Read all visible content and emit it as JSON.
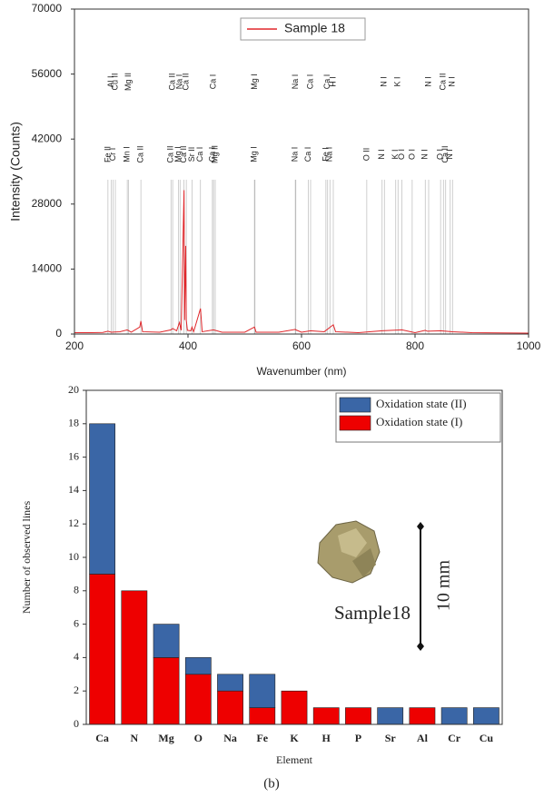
{
  "chart_data": [
    {
      "type": "line",
      "xlabel": "Wavenumber (nm)",
      "ylabel": "Intensity (Counts)",
      "x": [
        200,
        230,
        250,
        259,
        265,
        280,
        293,
        300,
        315,
        317,
        320,
        350,
        370,
        373,
        380,
        385,
        388,
        393,
        394,
        396,
        397,
        399,
        405,
        407,
        410,
        422,
        425,
        445,
        460,
        500,
        517,
        518,
        520,
        560,
        589,
        590,
        600,
        616,
        640,
        656,
        660,
        700,
        742,
        777,
        800,
        818,
        822,
        845,
        866,
        900,
        950,
        1000
      ],
      "series": [
        {
          "name": "Sample 18",
          "color": "#e0262a",
          "values": [
            300,
            300,
            350,
            600,
            400,
            500,
            900,
            400,
            1500,
            2800,
            500,
            400,
            900,
            1200,
            700,
            2500,
            800,
            31000,
            3000,
            19000,
            3000,
            800,
            700,
            1500,
            500,
            5500,
            500,
            900,
            400,
            400,
            1500,
            1200,
            400,
            400,
            1000,
            900,
            400,
            700,
            500,
            2000,
            500,
            300,
            700,
            900,
            300,
            800,
            600,
            700,
            500,
            300,
            250,
            200
          ]
        }
      ],
      "xlim": [
        200,
        1000
      ],
      "xticks": [
        200,
        400,
        600,
        800,
        1000
      ],
      "ylim": [
        0,
        70000
      ],
      "yticks": [
        0,
        14000,
        28000,
        42000,
        56000,
        70000
      ],
      "grid": false,
      "legend": "top",
      "annotations": [
        {
          "x": 259,
          "label": "Fe II"
        },
        {
          "x": 265,
          "label": "Al I"
        },
        {
          "x": 268,
          "label": "Cr I"
        },
        {
          "x": 272,
          "label": "Cu II"
        },
        {
          "x": 293,
          "label": "Mn I"
        },
        {
          "x": 295,
          "label": "Mg II"
        },
        {
          "x": 317,
          "label": "Ca II"
        },
        {
          "x": 370,
          "label": "Ca II"
        },
        {
          "x": 373,
          "label": "Ca II"
        },
        {
          "x": 383,
          "label": "Mg I"
        },
        {
          "x": 386,
          "label": "Na I"
        },
        {
          "x": 393,
          "label": "Ca II"
        },
        {
          "x": 397,
          "label": "Ca II"
        },
        {
          "x": 407,
          "label": "Sr II"
        },
        {
          "x": 422,
          "label": "Ca I"
        },
        {
          "x": 443,
          "label": "Ca I"
        },
        {
          "x": 445,
          "label": "Ca I"
        },
        {
          "x": 448,
          "label": "Mg II"
        },
        {
          "x": 517,
          "label": "Mg I"
        },
        {
          "x": 518,
          "label": "Mg I"
        },
        {
          "x": 589,
          "label": "Na I"
        },
        {
          "x": 590,
          "label": "Na I"
        },
        {
          "x": 612,
          "label": "Ca I"
        },
        {
          "x": 616,
          "label": "Ca I"
        },
        {
          "x": 643,
          "label": "Fe I"
        },
        {
          "x": 646,
          "label": "Ca I"
        },
        {
          "x": 650,
          "label": "Na I"
        },
        {
          "x": 656,
          "label": "H I"
        },
        {
          "x": 715,
          "label": "O II"
        },
        {
          "x": 742,
          "label": "N I"
        },
        {
          "x": 746,
          "label": "N I"
        },
        {
          "x": 766,
          "label": "K I"
        },
        {
          "x": 770,
          "label": "K I"
        },
        {
          "x": 777,
          "label": "O I"
        },
        {
          "x": 795,
          "label": "O I"
        },
        {
          "x": 818,
          "label": "N I"
        },
        {
          "x": 824,
          "label": "N I"
        },
        {
          "x": 845,
          "label": "O I"
        },
        {
          "x": 850,
          "label": "Ca II"
        },
        {
          "x": 854,
          "label": "Ca II"
        },
        {
          "x": 862,
          "label": "N I"
        },
        {
          "x": 866,
          "label": "N I"
        }
      ]
    },
    {
      "type": "bar",
      "stacked": true,
      "xlabel": "Element",
      "ylabel": "Number of observed lines",
      "categories": [
        "Ca",
        "N",
        "Mg",
        "O",
        "Na",
        "Fe",
        "K",
        "H",
        "P",
        "Sr",
        "Al",
        "Cr",
        "Cu"
      ],
      "series": [
        {
          "name": "Oxidation state (I)",
          "color": "#ee0000",
          "values": [
            9,
            8,
            4,
            3,
            2,
            1,
            2,
            1,
            1,
            0,
            1,
            0,
            0
          ]
        },
        {
          "name": "Oxidation state (II)",
          "color": "#3a66a6",
          "values": [
            9,
            0,
            2,
            1,
            1,
            2,
            0,
            0,
            0,
            1,
            0,
            1,
            1
          ]
        }
      ],
      "ylim": [
        0,
        20
      ],
      "yticks": [
        0,
        2,
        4,
        6,
        8,
        10,
        12,
        14,
        16,
        18,
        20
      ],
      "grid": false,
      "legend": "top-right",
      "inset_label": "Sample18",
      "scale_label": "10 mm",
      "caption": "(b)"
    }
  ]
}
